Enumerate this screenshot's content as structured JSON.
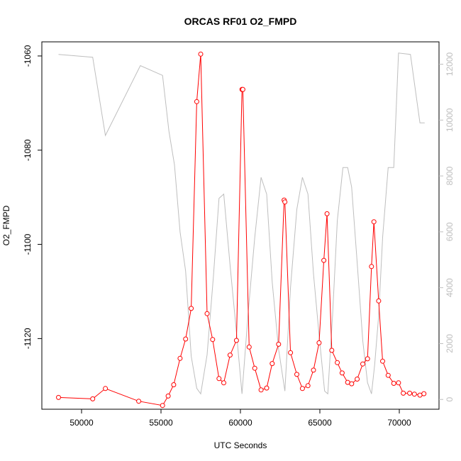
{
  "chart_data": {
    "type": "line",
    "title": "ORCAS RF01 O2_FMPD",
    "xlabel": "UTC Seconds",
    "ylabel": "O2_FMPD",
    "xlim": [
      47500,
      72500
    ],
    "ylim": [
      -1135,
      -1057
    ],
    "x_ticks": [
      50000,
      55000,
      60000,
      65000,
      70000
    ],
    "y_ticks": [
      -1060,
      -1080,
      -1100,
      -1120
    ],
    "secondary_ylim": [
      -350,
      12800
    ],
    "secondary_y_ticks": [
      0,
      2000,
      4000,
      6000,
      8000,
      10000,
      12000
    ],
    "grid": false,
    "legend": "none",
    "series": [
      {
        "color": "#ff0000",
        "marker": "open-circle",
        "axis": "left",
        "x": [
          48550,
          50700,
          51500,
          53600,
          55100,
          55450,
          55800,
          56200,
          56550,
          56900,
          57250,
          57500,
          57900,
          58250,
          58650,
          58950,
          59350,
          59750,
          60100,
          60150,
          60550,
          60900,
          61300,
          61650,
          62000,
          62400,
          62750,
          62800,
          63150,
          63550,
          63900,
          64250,
          64600,
          64950,
          65250,
          65450,
          65750,
          66100,
          66400,
          66750,
          67000,
          67350,
          67700,
          68000,
          68250,
          68400,
          68700,
          68950,
          69300,
          69650,
          69950,
          70250,
          70650,
          70950,
          71300,
          71550
        ],
        "y": [
          -1132.5,
          -1132.8,
          -1130.6,
          -1133.3,
          -1134.2,
          -1132.2,
          -1129.8,
          -1124.2,
          -1120.1,
          -1113.6,
          -1069.7,
          -1059.6,
          -1114.7,
          -1120.2,
          -1128.5,
          -1129.4,
          -1123.5,
          -1120.4,
          -1067.1,
          -1067.1,
          -1121.8,
          -1126.3,
          -1130.9,
          -1130.5,
          -1125.3,
          -1121.2,
          -1090.6,
          -1091.0,
          -1123.0,
          -1127.6,
          -1130.6,
          -1130.0,
          -1126.7,
          -1120.9,
          -1103.4,
          -1093.5,
          -1122.5,
          -1125.1,
          -1127.3,
          -1129.3,
          -1129.6,
          -1128.6,
          -1125.4,
          -1124.3,
          -1104.7,
          -1095.2,
          -1112.0,
          -1124.8,
          -1127.8,
          -1129.5,
          -1129.4,
          -1131.6,
          -1131.6,
          -1131.8,
          -1132.0,
          -1131.7
        ]
      },
      {
        "color": "#bebebe",
        "marker": "none",
        "axis": "right",
        "x": [
          48550,
          50700,
          51500,
          53700,
          55100,
          55500,
          55850,
          56200,
          56550,
          56900,
          57250,
          57500,
          57900,
          58300,
          58650,
          58950,
          59350,
          59750,
          60100,
          60500,
          60900,
          61300,
          61650,
          62000,
          62400,
          62800,
          63150,
          63550,
          63900,
          64250,
          64600,
          64950,
          65300,
          65500,
          65800,
          66100,
          66450,
          66750,
          67000,
          67350,
          67700,
          68000,
          68250,
          68450,
          68700,
          68950,
          69300,
          69650,
          69950,
          70700,
          71300,
          71600
        ],
        "y": [
          12350,
          12250,
          9450,
          11950,
          11600,
          9600,
          8400,
          6000,
          4600,
          1550,
          400,
          200,
          1600,
          4400,
          7200,
          7350,
          4800,
          2400,
          200,
          3200,
          5800,
          7950,
          7350,
          4200,
          1800,
          300,
          4000,
          6800,
          7950,
          7350,
          4500,
          2300,
          300,
          200,
          3000,
          6400,
          8300,
          8300,
          7600,
          4900,
          2100,
          600,
          200,
          1250,
          3000,
          5800,
          8300,
          8300,
          12400,
          12350,
          9900,
          9900
        ]
      }
    ]
  }
}
